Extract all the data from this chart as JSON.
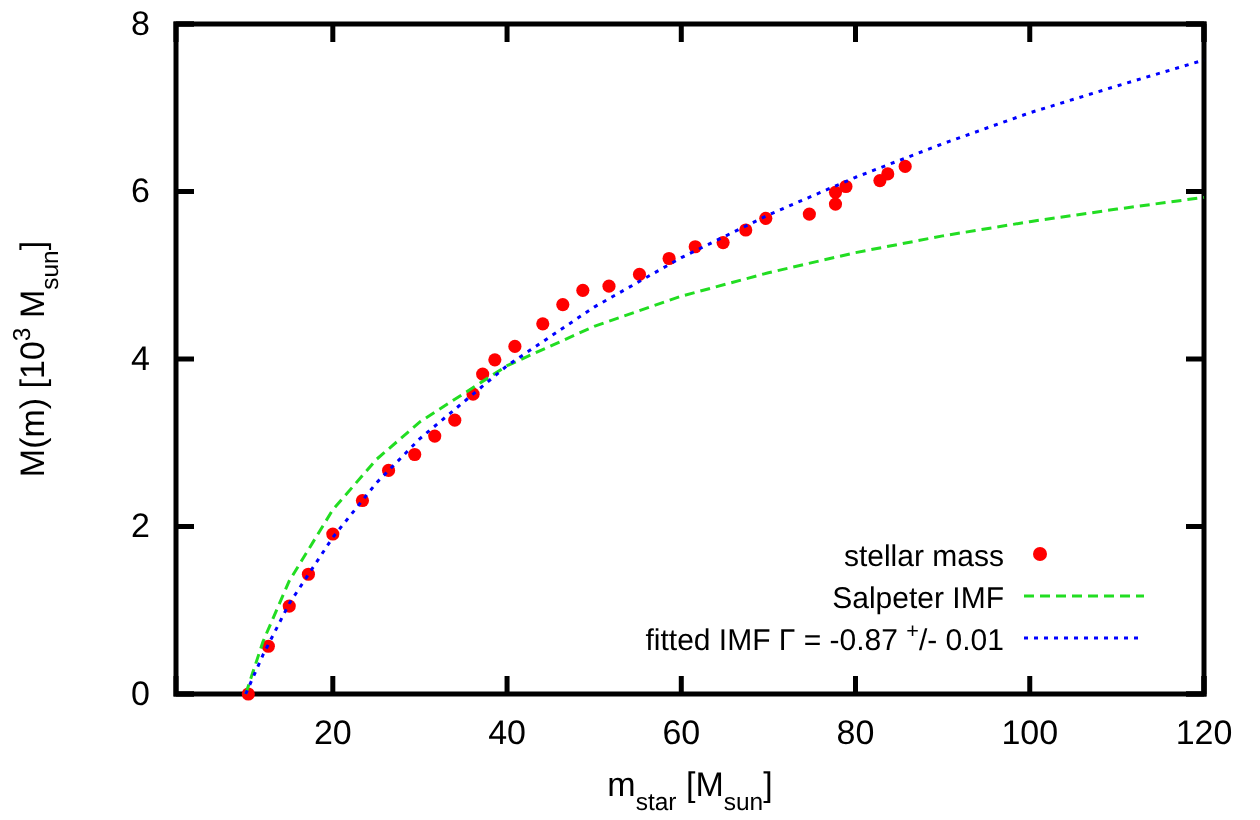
{
  "chart_data": {
    "type": "scatter",
    "xlabel": "m$_{star}$ [M$_{sun}$]",
    "ylabel": "M(m) [10$^{3}$ M$_{sun}$]",
    "xlim": [
      2,
      120
    ],
    "xticks": [
      20,
      40,
      60,
      80,
      100,
      120
    ],
    "ylim": [
      0,
      8
    ],
    "yticks": [
      0,
      2,
      4,
      6,
      8
    ],
    "grid": false,
    "legend": "bottom right",
    "series": [
      {
        "name": "stellar mass",
        "marker": "circle",
        "color": "#ff0000",
        "x": [
          10.3,
          12.6,
          15,
          17.2,
          20,
          23.4,
          26.4,
          29.4,
          31.7,
          34,
          36.1,
          37.2,
          38.6,
          40.9,
          44.1,
          46.4,
          48.7,
          51.7,
          55.2,
          58.6,
          61.6,
          64.8,
          67.4,
          69.7,
          74.7,
          77.7,
          77.7,
          78.9,
          82.8,
          83.7,
          85.7
        ],
        "values": [
          0,
          0.57,
          1.05,
          1.43,
          1.91,
          2.31,
          2.67,
          2.86,
          3.08,
          3.27,
          3.58,
          3.82,
          3.99,
          4.15,
          4.42,
          4.65,
          4.82,
          4.87,
          5.01,
          5.2,
          5.34,
          5.39,
          5.54,
          5.68,
          5.73,
          5.85,
          5.99,
          6.06,
          6.13,
          6.21,
          6.3
        ]
      },
      {
        "name": "Salpeter IMF",
        "type": "line",
        "line_style": "dashed",
        "color": "#22dd22",
        "x": [
          10,
          12,
          15,
          20,
          25,
          30,
          40,
          50,
          60,
          70,
          80,
          90,
          100,
          110,
          120
        ],
        "values": [
          0,
          0.63,
          1.35,
          2.2,
          2.8,
          3.25,
          3.92,
          4.39,
          4.75,
          5.03,
          5.27,
          5.47,
          5.64,
          5.79,
          5.93
        ]
      },
      {
        "name": "fitted IMF Γ = -0.87 $^{+}$/- 0.01",
        "type": "line",
        "line_style": "dotted",
        "color": "#0000ff",
        "x": [
          10,
          12,
          15,
          20,
          25,
          30,
          40,
          50,
          60,
          70,
          80,
          90,
          100,
          110,
          120
        ],
        "values": [
          0,
          0.47,
          1.08,
          1.87,
          2.52,
          3.05,
          3.92,
          4.62,
          5.21,
          5.72,
          6.17,
          6.57,
          6.94,
          7.26,
          7.57
        ]
      }
    ]
  }
}
